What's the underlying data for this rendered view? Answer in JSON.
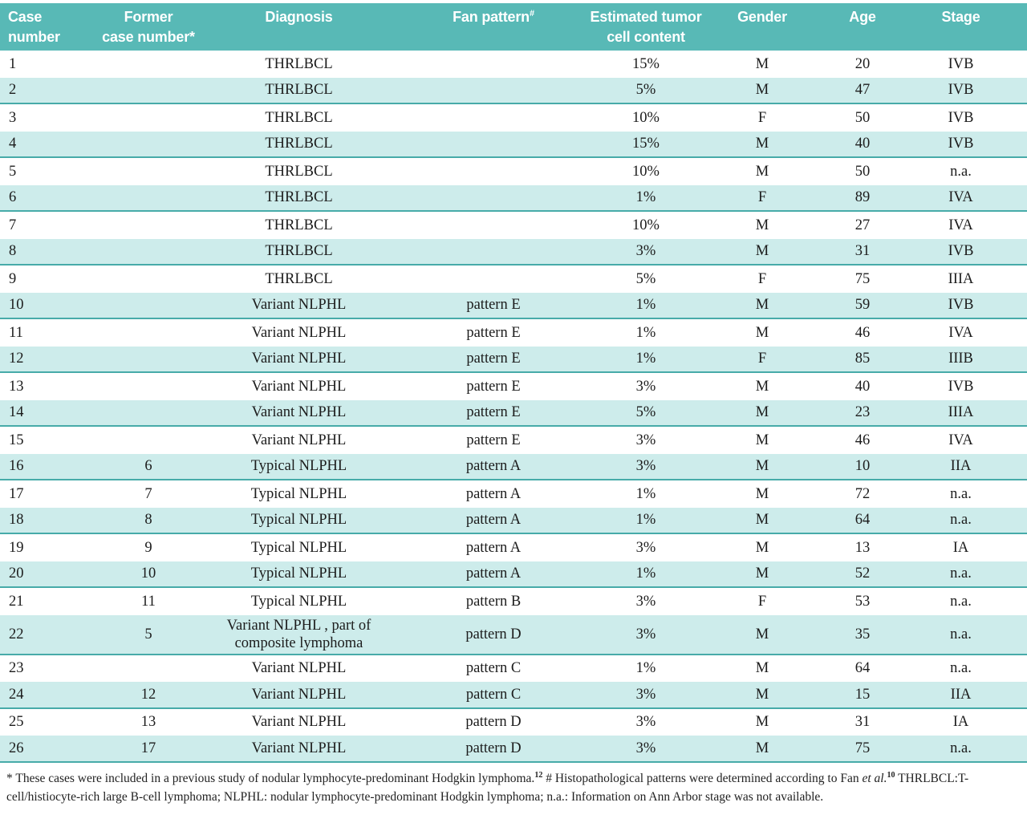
{
  "colors": {
    "header_bg": "#58b9b6",
    "header_text": "#ffffff",
    "stripe_bg": "#cdeceb",
    "stripe_rule": "#47aba9",
    "body_text": "#1c1c1c"
  },
  "table": {
    "columns": [
      {
        "id": "case",
        "label": "Case\nnumber"
      },
      {
        "id": "former",
        "label": "Former\ncase number*"
      },
      {
        "id": "diagnosis",
        "label": "Diagnosis"
      },
      {
        "id": "pattern",
        "label": "Fan pattern",
        "sup": "#"
      },
      {
        "id": "content",
        "label": "Estimated tumor\ncell content"
      },
      {
        "id": "gender",
        "label": "Gender"
      },
      {
        "id": "age",
        "label": "Age"
      },
      {
        "id": "stage",
        "label": "Stage"
      }
    ],
    "rows": [
      [
        "1",
        "",
        "THRLBCL",
        "",
        "15%",
        "M",
        "20",
        "IVB"
      ],
      [
        "2",
        "",
        "THRLBCL",
        "",
        "5%",
        "M",
        "47",
        "IVB"
      ],
      [
        "3",
        "",
        "THRLBCL",
        "",
        "10%",
        "F",
        "50",
        "IVB"
      ],
      [
        "4",
        "",
        "THRLBCL",
        "",
        "15%",
        "M",
        "40",
        "IVB"
      ],
      [
        "5",
        "",
        "THRLBCL",
        "",
        "10%",
        "M",
        "50",
        "n.a."
      ],
      [
        "6",
        "",
        "THRLBCL",
        "",
        "1%",
        "F",
        "89",
        "IVA"
      ],
      [
        "7",
        "",
        "THRLBCL",
        "",
        "10%",
        "M",
        "27",
        "IVA"
      ],
      [
        "8",
        "",
        "THRLBCL",
        "",
        "3%",
        "M",
        "31",
        "IVB"
      ],
      [
        "9",
        "",
        "THRLBCL",
        "",
        "5%",
        "F",
        "75",
        "IIIA"
      ],
      [
        "10",
        "",
        "Variant NLPHL",
        "pattern E",
        "1%",
        "M",
        "59",
        "IVB"
      ],
      [
        "11",
        "",
        "Variant NLPHL",
        "pattern E",
        "1%",
        "M",
        "46",
        "IVA"
      ],
      [
        "12",
        "",
        "Variant NLPHL",
        "pattern E",
        "1%",
        "F",
        "85",
        "IIIB"
      ],
      [
        "13",
        "",
        "Variant NLPHL",
        "pattern E",
        "3%",
        "M",
        "40",
        "IVB"
      ],
      [
        "14",
        "",
        "Variant NLPHL",
        "pattern E",
        "5%",
        "M",
        "23",
        "IIIA"
      ],
      [
        "15",
        "",
        "Variant NLPHL",
        "pattern E",
        "3%",
        "M",
        "46",
        "IVA"
      ],
      [
        "16",
        "6",
        "Typical NLPHL",
        "pattern A",
        "3%",
        "M",
        "10",
        "IIA"
      ],
      [
        "17",
        "7",
        "Typical NLPHL",
        "pattern A",
        "1%",
        "M",
        "72",
        "n.a."
      ],
      [
        "18",
        "8",
        "Typical NLPHL",
        "pattern A",
        "1%",
        "M",
        "64",
        "n.a."
      ],
      [
        "19",
        "9",
        "Typical NLPHL",
        "pattern A",
        "3%",
        "M",
        "13",
        "IA"
      ],
      [
        "20",
        "10",
        "Typical NLPHL",
        "pattern A",
        "1%",
        "M",
        "52",
        "n.a."
      ],
      [
        "21",
        "11",
        "Typical NLPHL",
        "pattern B",
        "3%",
        "F",
        "53",
        "n.a."
      ],
      [
        "22",
        "5",
        "Variant NLPHL , part of composite lymphoma",
        "pattern D",
        "3%",
        "M",
        "35",
        "n.a."
      ],
      [
        "23",
        "",
        "Variant NLPHL",
        "pattern C",
        "1%",
        "M",
        "64",
        "n.a."
      ],
      [
        "24",
        "12",
        "Variant NLPHL",
        "pattern C",
        "3%",
        "M",
        "15",
        "IIA"
      ],
      [
        "25",
        "13",
        "Variant NLPHL",
        "pattern D",
        "3%",
        "M",
        "31",
        "IA"
      ],
      [
        "26",
        "17",
        "Variant NLPHL",
        "pattern D",
        "3%",
        "M",
        "75",
        "n.a."
      ]
    ]
  },
  "footnote": {
    "segments": [
      {
        "t": "* These cases were included in a previous study of nodular lymphocyte-predominant Hodgkin lymphoma."
      },
      {
        "t": "12",
        "sup": true
      },
      {
        "t": " # Histopathological patterns were determined according to Fan "
      },
      {
        "t": "et al.",
        "italic": true
      },
      {
        "t": "10",
        "sup": true
      },
      {
        "t": " THRLBCL:T-cell/histiocyte-rich large B-cell lymphoma; NLPHL: nodular lymphocyte-predominant Hodgkin lymphoma; n.a.: Information on Ann Arbor stage was not available."
      }
    ]
  }
}
